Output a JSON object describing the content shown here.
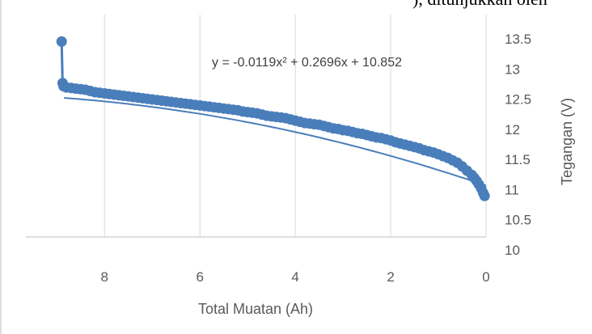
{
  "top_cut_text": "), ditunjukkan oleh",
  "chart_data": {
    "type": "scatter",
    "title": "",
    "xlabel": "Total Muatan (Ah)",
    "ylabel": "Tegangan (V)",
    "x_reversed": true,
    "xlim": [
      9.65,
      0
    ],
    "ylim": [
      10,
      13.5
    ],
    "x_ticks": [
      "8",
      "6",
      "4",
      "2",
      "0"
    ],
    "y_ticks": [
      "10",
      "10.5",
      "11",
      "11.5",
      "12",
      "12.5",
      "13",
      "13.5"
    ],
    "grid": "vertical",
    "trendline": {
      "type": "polynomial",
      "equation": "y = -0.0119x² + 0.2696x + 10.852",
      "coefficients": [
        -0.0119,
        0.2696,
        10.852
      ],
      "x_range": [
        0,
        8.85
      ]
    },
    "series": [
      {
        "color": "#4a7ebb",
        "points": [
          [
            8.9,
            13.24
          ],
          [
            8.88,
            12.55
          ],
          [
            8.86,
            12.5
          ],
          [
            8.8,
            12.48
          ],
          [
            8.7,
            12.47
          ],
          [
            8.6,
            12.46
          ],
          [
            8.5,
            12.45
          ],
          [
            8.4,
            12.44
          ],
          [
            8.3,
            12.42
          ],
          [
            8.2,
            12.4
          ],
          [
            8.1,
            12.39
          ],
          [
            8.0,
            12.38
          ],
          [
            7.9,
            12.37
          ],
          [
            7.8,
            12.36
          ],
          [
            7.7,
            12.35
          ],
          [
            7.6,
            12.34
          ],
          [
            7.5,
            12.33
          ],
          [
            7.4,
            12.32
          ],
          [
            7.3,
            12.31
          ],
          [
            7.2,
            12.3
          ],
          [
            7.1,
            12.29
          ],
          [
            7.0,
            12.28
          ],
          [
            6.9,
            12.27
          ],
          [
            6.8,
            12.26
          ],
          [
            6.7,
            12.25
          ],
          [
            6.6,
            12.24
          ],
          [
            6.5,
            12.23
          ],
          [
            6.4,
            12.22
          ],
          [
            6.3,
            12.21
          ],
          [
            6.2,
            12.2
          ],
          [
            6.1,
            12.19
          ],
          [
            6.0,
            12.18
          ],
          [
            5.9,
            12.17
          ],
          [
            5.8,
            12.16
          ],
          [
            5.7,
            12.15
          ],
          [
            5.6,
            12.14
          ],
          [
            5.5,
            12.13
          ],
          [
            5.4,
            12.12
          ],
          [
            5.3,
            12.11
          ],
          [
            5.2,
            12.1
          ],
          [
            5.1,
            12.08
          ],
          [
            5.0,
            12.07
          ],
          [
            4.9,
            12.06
          ],
          [
            4.8,
            12.05
          ],
          [
            4.7,
            12.03
          ],
          [
            4.6,
            12.01
          ],
          [
            4.5,
            12.0
          ],
          [
            4.4,
            11.99
          ],
          [
            4.3,
            11.98
          ],
          [
            4.2,
            11.97
          ],
          [
            4.1,
            11.95
          ],
          [
            4.0,
            11.93
          ],
          [
            3.9,
            11.91
          ],
          [
            3.8,
            11.89
          ],
          [
            3.7,
            11.88
          ],
          [
            3.6,
            11.87
          ],
          [
            3.5,
            11.86
          ],
          [
            3.4,
            11.84
          ],
          [
            3.3,
            11.82
          ],
          [
            3.2,
            11.8
          ],
          [
            3.1,
            11.79
          ],
          [
            3.0,
            11.77
          ],
          [
            2.9,
            11.76
          ],
          [
            2.8,
            11.74
          ],
          [
            2.7,
            11.72
          ],
          [
            2.6,
            11.71
          ],
          [
            2.5,
            11.69
          ],
          [
            2.4,
            11.67
          ],
          [
            2.3,
            11.65
          ],
          [
            2.2,
            11.64
          ],
          [
            2.1,
            11.62
          ],
          [
            2.0,
            11.6
          ],
          [
            1.9,
            11.57
          ],
          [
            1.8,
            11.55
          ],
          [
            1.7,
            11.53
          ],
          [
            1.6,
            11.51
          ],
          [
            1.5,
            11.49
          ],
          [
            1.4,
            11.47
          ],
          [
            1.3,
            11.44
          ],
          [
            1.2,
            11.42
          ],
          [
            1.1,
            11.4
          ],
          [
            1.0,
            11.37
          ],
          [
            0.9,
            11.34
          ],
          [
            0.8,
            11.31
          ],
          [
            0.7,
            11.27
          ],
          [
            0.6,
            11.23
          ],
          [
            0.5,
            11.17
          ],
          [
            0.4,
            11.1
          ],
          [
            0.3,
            11.03
          ],
          [
            0.25,
            10.98
          ],
          [
            0.2,
            10.93
          ],
          [
            0.15,
            10.87
          ],
          [
            0.1,
            10.8
          ],
          [
            0.06,
            10.73
          ],
          [
            0.03,
            10.68
          ]
        ]
      }
    ]
  }
}
